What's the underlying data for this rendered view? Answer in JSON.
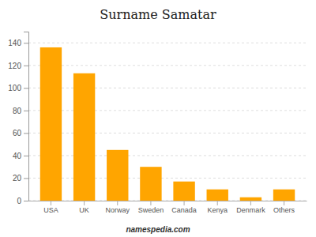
{
  "chart_data": {
    "type": "bar",
    "title": "Surname Samatar",
    "categories": [
      "USA",
      "UK",
      "Norway",
      "Sweden",
      "Canada",
      "Kenya",
      "Denmark",
      "Others"
    ],
    "values": [
      136,
      113,
      45,
      30,
      17,
      10,
      3,
      10
    ],
    "color": "#FFA500",
    "ylim": [
      0,
      150
    ],
    "yticks": [
      0,
      20,
      40,
      60,
      80,
      100,
      120,
      140
    ],
    "grid": true,
    "annotations": [
      "namespedia.com"
    ]
  }
}
